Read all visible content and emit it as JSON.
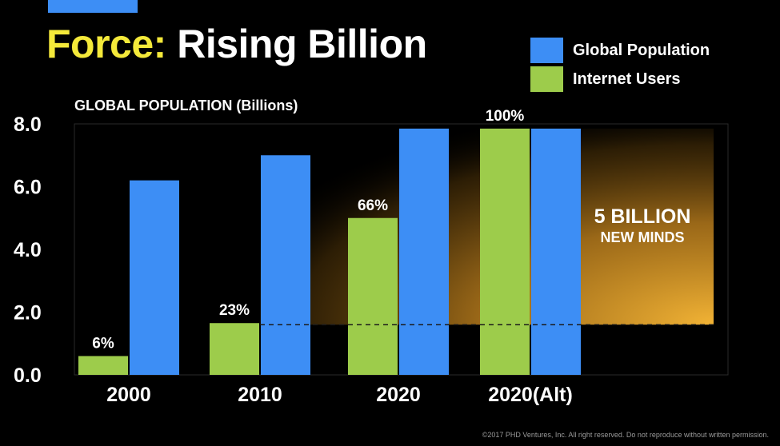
{
  "header": {
    "title_accent": "Force:",
    "title_rest": "Rising Billion"
  },
  "legend": [
    {
      "label": "Global Population",
      "color": "#3d8ef5"
    },
    {
      "label": "Internet Users",
      "color": "#9dcc4b"
    }
  ],
  "footer": {
    "copyright": "©2017 PHD Ventures, Inc. All right reserved. Do not reproduce without written permission."
  },
  "chart_data": {
    "type": "bar",
    "title": "GLOBAL POPULATION (Billions)",
    "ylim": [
      0,
      8
    ],
    "yticks": [
      "0.0",
      "2.0",
      "4.0",
      "6.0",
      "8.0"
    ],
    "categories": [
      "2000",
      "2010",
      "2020",
      "2020(Alt)"
    ],
    "series": [
      {
        "name": "Internet Users",
        "color": "#9dcc4b",
        "values": [
          0.6,
          1.65,
          5.0,
          7.85
        ]
      },
      {
        "name": "Global Population",
        "color": "#3d8ef5",
        "values": [
          6.2,
          7.0,
          7.85,
          7.85
        ]
      }
    ],
    "data_labels": [
      "6%",
      "23%",
      "66%",
      "100%"
    ],
    "annotation": {
      "line1": "5 BILLION",
      "line2": "NEW MINDS",
      "range": [
        1.6,
        7.85
      ]
    },
    "grid": false
  }
}
